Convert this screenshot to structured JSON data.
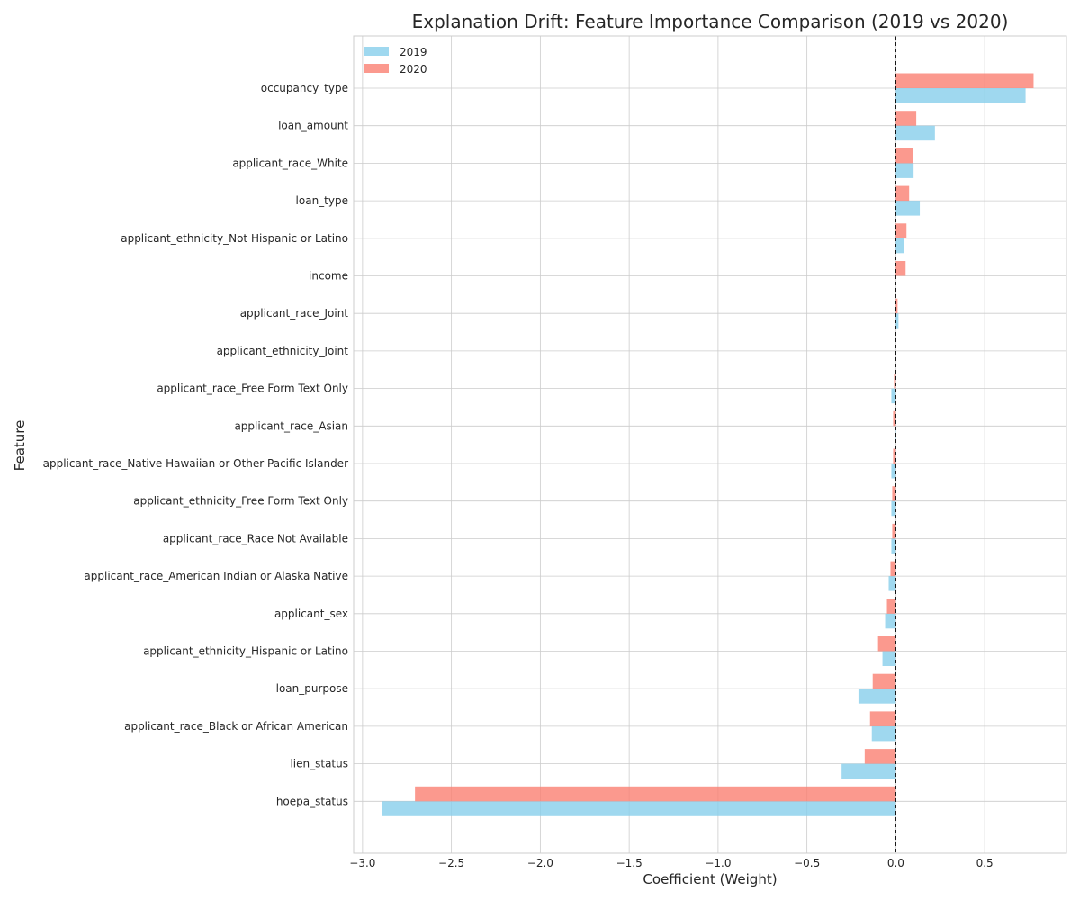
{
  "chart_data": {
    "type": "bar",
    "orientation": "horizontal",
    "title": "Explanation Drift: Feature Importance Comparison (2019 vs 2020)",
    "xlabel": "Coefficient (Weight)",
    "ylabel": "Feature",
    "xlim": [
      -3.05,
      0.96
    ],
    "xticks": [
      -3.0,
      -2.5,
      -2.0,
      -1.5,
      -1.0,
      -0.5,
      0.0,
      0.5
    ],
    "xtick_labels": [
      "−3.0",
      "−2.5",
      "−2.0",
      "−1.5",
      "−1.0",
      "−0.5",
      "0.0",
      "0.5"
    ],
    "grid": true,
    "legend_position": "top-left",
    "reference_line": 0.0,
    "categories": [
      "occupancy_type",
      "loan_amount",
      "applicant_race_White",
      "loan_type",
      "applicant_ethnicity_Not Hispanic or Latino",
      "income",
      "applicant_race_Joint",
      "applicant_ethnicity_Joint",
      "applicant_race_Free Form Text Only",
      "applicant_race_Asian",
      "applicant_race_Native Hawaiian or Other Pacific Islander",
      "applicant_ethnicity_Free Form Text Only",
      "applicant_race_Race Not Available",
      "applicant_race_American Indian or Alaska Native",
      "applicant_sex",
      "applicant_ethnicity_Hispanic or Latino",
      "loan_purpose",
      "applicant_race_Black or African American",
      "lien_status",
      "hoepa_status"
    ],
    "series": [
      {
        "name": "2019",
        "color": "#87ceeb",
        "values": [
          0.73,
          0.22,
          0.1,
          0.135,
          0.045,
          0.0,
          0.015,
          0.0,
          -0.025,
          -0.005,
          -0.025,
          -0.025,
          -0.025,
          -0.04,
          -0.06,
          -0.075,
          -0.21,
          -0.135,
          -0.305,
          -2.89
        ]
      },
      {
        "name": "2020",
        "color": "#fa8072",
        "values": [
          0.775,
          0.115,
          0.095,
          0.075,
          0.06,
          0.055,
          0.01,
          0.0,
          -0.01,
          -0.015,
          -0.015,
          -0.02,
          -0.02,
          -0.03,
          -0.05,
          -0.1,
          -0.13,
          -0.145,
          -0.175,
          -2.705
        ]
      }
    ]
  }
}
